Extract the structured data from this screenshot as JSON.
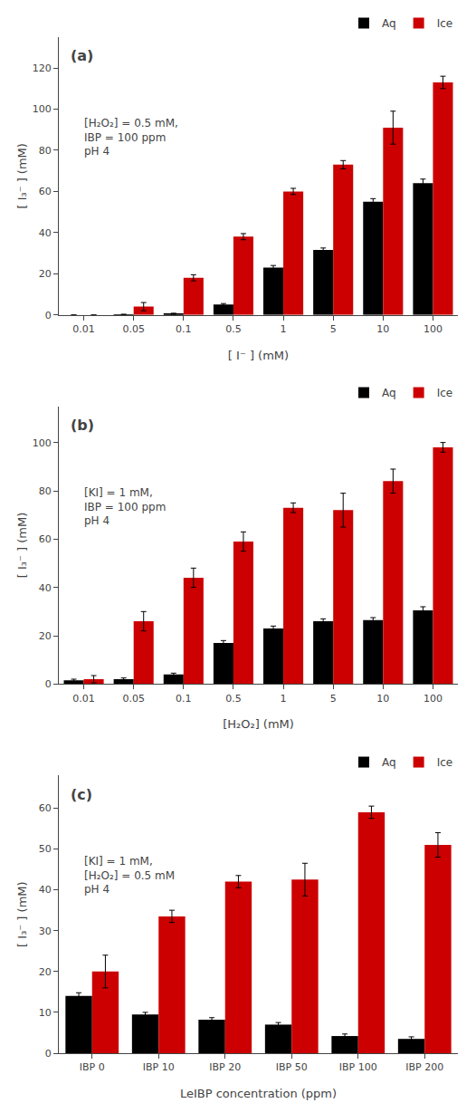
{
  "chart_data": [
    {
      "type": "bar",
      "title": "(a)",
      "xlabel": "[ I⁻ ] (mM)",
      "ylabel": "[ I₃⁻ ] (mM)",
      "annotation": "[H₂O₂] = 0.5 mM,\nIBP = 100 ppm\npH 4",
      "categories": [
        "0.01",
        "0.05",
        "0.1",
        "0.5",
        "1",
        "5",
        "10",
        "100"
      ],
      "series": [
        {
          "name": "Aq",
          "color": "#000000",
          "values": [
            0.0,
            0.2,
            0.5,
            5.0,
            23.0,
            31.5,
            55.0,
            64.0
          ],
          "errors": [
            0.0,
            0.1,
            0.3,
            0.5,
            1.0,
            1.0,
            1.5,
            2.0
          ]
        },
        {
          "name": "Ice",
          "color": "#cc0000",
          "values": [
            0.0,
            4.0,
            18.0,
            38.0,
            60.0,
            73.0,
            91.0,
            113.0
          ],
          "errors": [
            0.0,
            2.0,
            1.5,
            1.5,
            1.5,
            2.0,
            8.0,
            3.0
          ]
        }
      ],
      "ylim": [
        0,
        135
      ],
      "yticks": [
        0,
        20,
        40,
        60,
        80,
        100,
        120
      ],
      "grid": false,
      "legend": "upper right"
    },
    {
      "type": "bar",
      "title": "(b)",
      "xlabel": "[H₂O₂] (mM)",
      "ylabel": "[ I₃⁻ ] (mM)",
      "annotation": "[KI] = 1 mM,\nIBP = 100 ppm\npH 4",
      "categories": [
        "0.01",
        "0.05",
        "0.1",
        "0.5",
        "1",
        "5",
        "10",
        "100"
      ],
      "series": [
        {
          "name": "Aq",
          "color": "#000000",
          "values": [
            1.5,
            2.0,
            4.0,
            17.0,
            23.0,
            26.0,
            26.5,
            30.5
          ],
          "errors": [
            0.5,
            0.5,
            0.5,
            1.0,
            1.0,
            1.0,
            1.0,
            1.5
          ]
        },
        {
          "name": "Ice",
          "color": "#cc0000",
          "values": [
            2.0,
            26.0,
            44.0,
            59.0,
            73.0,
            72.0,
            84.0,
            98.0
          ],
          "errors": [
            1.5,
            4.0,
            4.0,
            4.0,
            2.0,
            7.0,
            5.0,
            2.0
          ]
        }
      ],
      "ylim": [
        0,
        115
      ],
      "yticks": [
        0,
        20,
        40,
        60,
        80,
        100
      ],
      "grid": false,
      "legend": "upper right"
    },
    {
      "type": "bar",
      "title": "(c)",
      "xlabel": "LeIBP concentration (ppm)",
      "ylabel": "[ I₃⁻ ] (mM)",
      "annotation": "[KI] = 1 mM,\n[H₂O₂] = 0.5 mM\npH 4",
      "categories": [
        "IBP 0",
        "IBP 10",
        "IBP 20",
        "IBP 50",
        "IBP 100",
        "IBP 200"
      ],
      "series": [
        {
          "name": "Aq",
          "color": "#000000",
          "values": [
            14.0,
            9.5,
            8.2,
            7.0,
            4.2,
            3.5
          ],
          "errors": [
            0.8,
            0.5,
            0.5,
            0.5,
            0.5,
            0.5
          ]
        },
        {
          "name": "Ice",
          "color": "#cc0000",
          "values": [
            20.0,
            33.5,
            42.0,
            42.5,
            59.0,
            51.0
          ],
          "errors": [
            4.0,
            1.5,
            1.5,
            4.0,
            1.5,
            3.0
          ]
        }
      ],
      "ylim": [
        0,
        68
      ],
      "yticks": [
        0,
        10,
        20,
        30,
        40,
        50,
        60
      ],
      "grid": false,
      "legend": "upper right"
    }
  ]
}
